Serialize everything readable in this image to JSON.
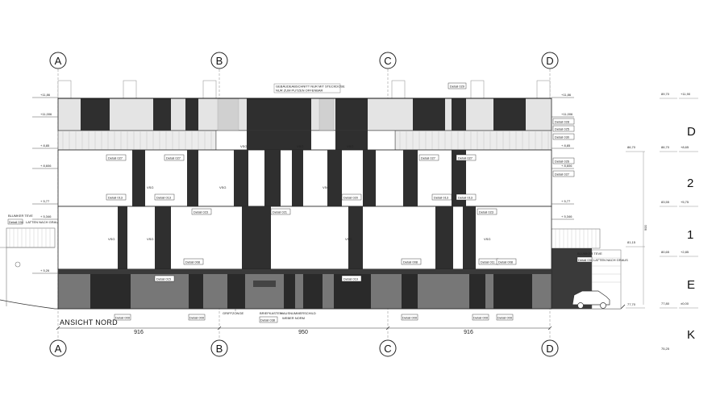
{
  "title": "ANSICHT NORD",
  "grid_axes_top": [
    "A",
    "B",
    "C",
    "D"
  ],
  "grid_axes_bottom": [
    "A",
    "B",
    "C",
    "D"
  ],
  "dimensions": [
    "916",
    "950",
    "916"
  ],
  "left_level_labels": [
    "+11,86",
    "+11,006",
    "+ 8,85",
    "+ 8,606",
    "+ 5,77",
    "+ 5,346",
    "+ 5,26"
  ],
  "right_level_labels": [
    "+11,86",
    "+11,006",
    "+ 8,85",
    "+ 8,606",
    "+ 5,77",
    "+ 5,346"
  ],
  "top_note": [
    "GEBÄUDEABSCHNITT NUR MIT STECKDOSE",
    "NUR ZUM PUTZEN OFFENBAR"
  ],
  "details": {
    "d029_top": "Detail 029",
    "d028": "Detail 028",
    "d025": "Detail 025",
    "d030": "Detail 030",
    "d026": "Detail 026",
    "d027_right": "Detail 027",
    "d027_a": "Detail 027",
    "d027_b": "Detail 027",
    "d027_c": "Detail 027",
    "d027_d": "Detail 027",
    "d013_a": "Detail 013",
    "d013_b": "Detail 013",
    "d020": "Detail 020",
    "d013_c": "Detail 013",
    "d013_d": "Detail 013",
    "d023_a": "Detail 023",
    "d021": "Detail 021",
    "d023_b": "Detail 023",
    "d008_a": "Detail 008",
    "d008_b": "Detail 008",
    "d011": "Detail 011",
    "d008_c": "Detail 008",
    "d015": "Detail 015",
    "d019": "Detail 019",
    "d009_a": "Detail 009",
    "d009_b": "Detail 009",
    "d038": "Detail 038",
    "d009_c": "Detail 009",
    "d009_d": "Detail 009",
    "d009_e": "Detail 009",
    "d034_left": "Detail 034",
    "d034_right": "Detail 034"
  },
  "vsg_label": "VSG",
  "bottom_notes": {
    "griffzonge": "GRIFFZONGE",
    "briefkasten": "BRIEFKASTEN",
    "hausnummer": "HAUSNUMMERSCHILD",
    "weber": "WEBER NORM"
  },
  "side_notes": {
    "left_top": "BLUMKER TEVE",
    "left_small": "LATTEN NACH GRAUS",
    "right_top": "BLUMKER TEVE",
    "right_small": "LATTEN NACH GRAUS"
  },
  "elevation_table": {
    "col1": [
      "86,70",
      "81,15",
      "77,70"
    ],
    "col2": [
      "89,70",
      "86,70",
      "83,55",
      "80,65",
      "77,80",
      "75,25"
    ],
    "col3": [
      "+11,90",
      "+8,65",
      "+5,75",
      "+2,85",
      "±0,00"
    ],
    "letters": [
      "D",
      "2",
      "1",
      "E",
      "K"
    ],
    "vertical_dim": "900"
  }
}
